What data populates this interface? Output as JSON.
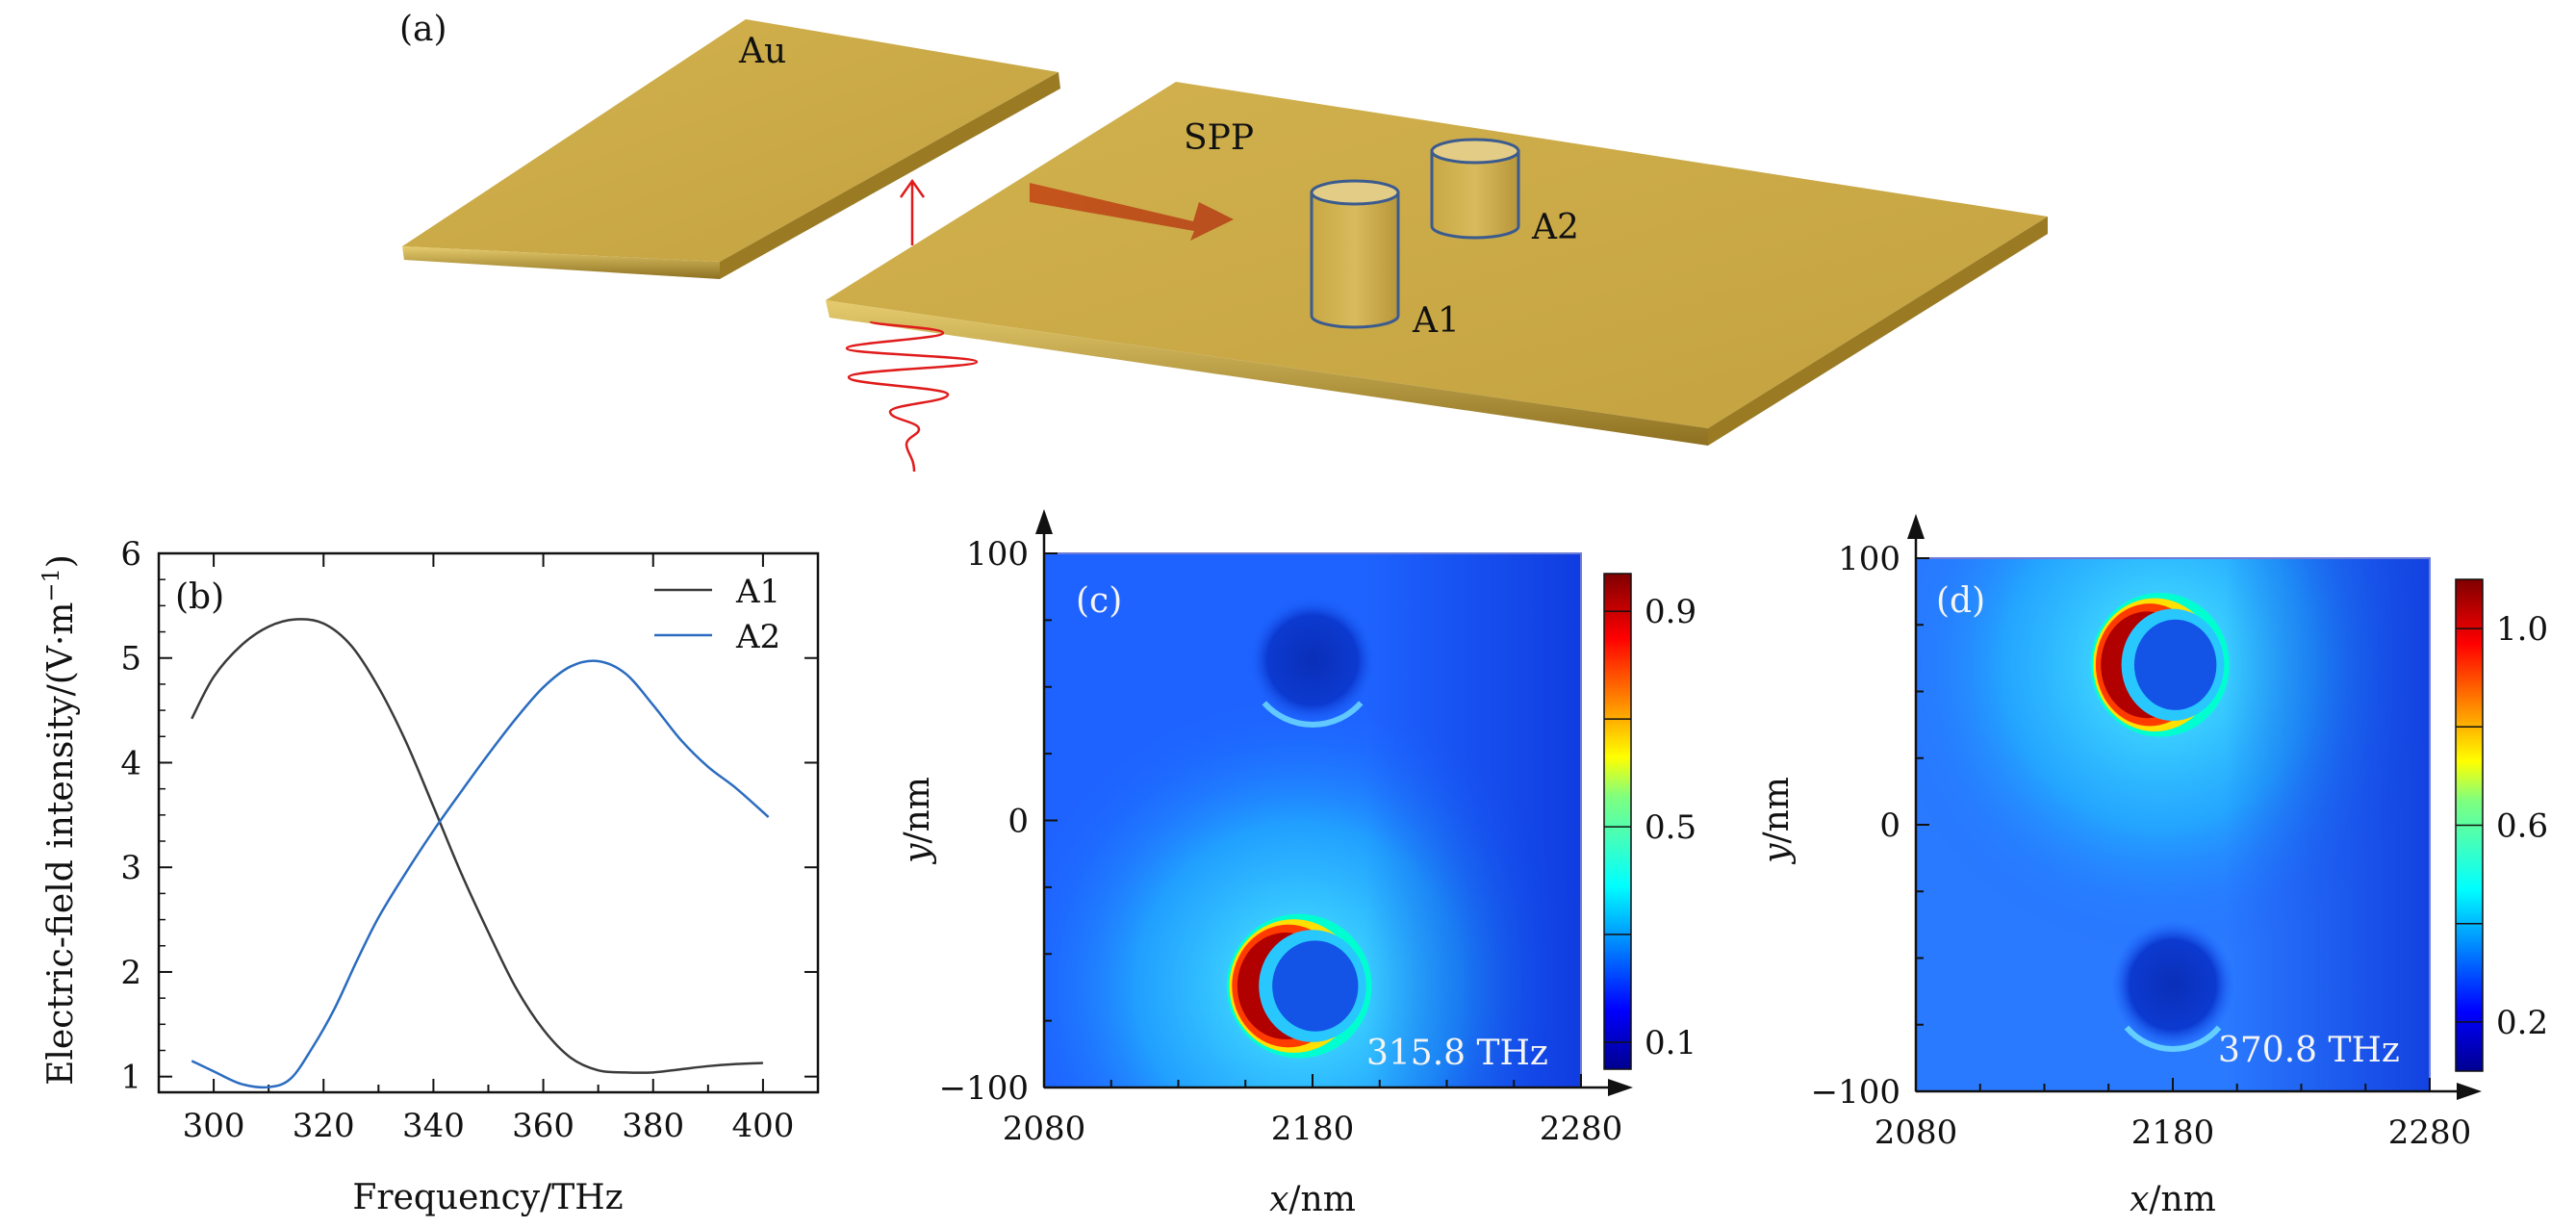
{
  "panel_a": {
    "label": "(a)",
    "material": "Au",
    "wave_label": "SPP",
    "antenna_1": "A1",
    "antenna_2": "A2",
    "colors": {
      "gold": "#c9a845",
      "gold_dark": "#9c7d24",
      "arrow": "#c0551e",
      "wave": "#e01b1b",
      "cylinder_edge": "#3b5b8f"
    }
  },
  "chart_data": [
    {
      "panel": "(b)",
      "type": "line",
      "xlabel": "Frequency/THz",
      "ylabel": "Electric-field intensity/(V·m",
      "ylabel_sup": "−1",
      "ylabel_close": ")",
      "xlim": [
        290,
        410
      ],
      "ylim": [
        0.85,
        6
      ],
      "xticks": [
        300,
        320,
        340,
        360,
        380,
        400
      ],
      "yticks": [
        1,
        2,
        3,
        4,
        5,
        6
      ],
      "series": [
        {
          "name": "A1",
          "color": "#3a3a3a",
          "x": [
            296,
            300,
            305,
            310,
            315,
            320,
            325,
            330,
            335,
            340,
            345,
            350,
            355,
            360,
            365,
            370,
            375,
            380,
            385,
            390,
            395,
            400
          ],
          "y": [
            4.42,
            4.82,
            5.12,
            5.3,
            5.37,
            5.33,
            5.12,
            4.72,
            4.2,
            3.58,
            2.95,
            2.38,
            1.85,
            1.45,
            1.18,
            1.06,
            1.04,
            1.04,
            1.07,
            1.1,
            1.12,
            1.13
          ]
        },
        {
          "name": "A2",
          "color": "#2b6cc0",
          "x": [
            296,
            300,
            305,
            310,
            314,
            318,
            322,
            326,
            330,
            335,
            340,
            345,
            350,
            355,
            360,
            365,
            370,
            375,
            380,
            385,
            390,
            395,
            401
          ],
          "y": [
            1.15,
            1.05,
            0.93,
            0.9,
            0.98,
            1.28,
            1.65,
            2.1,
            2.52,
            2.95,
            3.35,
            3.72,
            4.08,
            4.42,
            4.72,
            4.92,
            4.97,
            4.85,
            4.55,
            4.22,
            3.96,
            3.76,
            3.48
          ]
        }
      ]
    },
    {
      "panel": "(c)",
      "type": "heatmap",
      "frequency_label": "315.8 THz",
      "xlabel": "x",
      "xlabel_unit": "/nm",
      "ylabel": "y",
      "ylabel_unit": "/nm",
      "xlim": [
        2080,
        2280
      ],
      "ylim": [
        -100,
        100
      ],
      "xticks": [
        2080,
        2180,
        2280
      ],
      "yticks": [
        -100,
        0,
        100
      ],
      "colorbar_ticks": [
        0.1,
        0.5,
        0.9
      ],
      "colorbar_range": [
        0.05,
        0.97
      ],
      "bright_ring": {
        "cx": 2175,
        "cy": -62,
        "dark_cx": 2180,
        "dark_cy": -62
      },
      "dark_spot": {
        "cx": 2180,
        "cy": 60
      }
    },
    {
      "panel": "(d)",
      "type": "heatmap",
      "frequency_label": "370.8 THz",
      "xlabel": "x",
      "xlabel_unit": "/nm",
      "ylabel": "y",
      "ylabel_unit": "/nm",
      "xlim": [
        2080,
        2280
      ],
      "ylim": [
        -100,
        100
      ],
      "xticks": [
        2080,
        2180,
        2280
      ],
      "yticks": [
        -100,
        0,
        100
      ],
      "colorbar_ticks": [
        0.2,
        0.6,
        1.0
      ],
      "colorbar_tick_labels": [
        "0.2",
        "0.6",
        "1.0"
      ],
      "colorbar_range": [
        0.1,
        1.1
      ],
      "bright_ring": {
        "cx": 2175,
        "cy": 60,
        "dark_cx": 2180,
        "dark_cy": 60
      },
      "dark_spot": {
        "cx": 2180,
        "cy": -60
      }
    }
  ]
}
